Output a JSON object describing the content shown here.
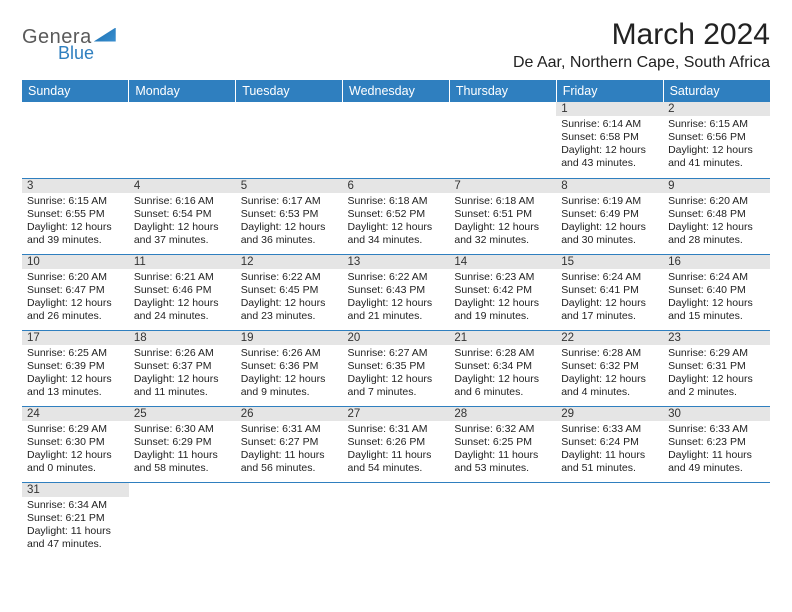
{
  "logo": {
    "part1": "Genera",
    "part2": "Blue",
    "part2_color": "#2f7fbf"
  },
  "title": "March 2024",
  "location": "De Aar, Northern Cape, South Africa",
  "header_bg": "#2f7fbf",
  "daynum_bg": "#e5e5e5",
  "border_color": "#2f7fbf",
  "days": [
    "Sunday",
    "Monday",
    "Tuesday",
    "Wednesday",
    "Thursday",
    "Friday",
    "Saturday"
  ],
  "weeks": [
    [
      null,
      null,
      null,
      null,
      null,
      {
        "n": "1",
        "sr": "Sunrise: 6:14 AM",
        "ss": "Sunset: 6:58 PM",
        "dl": "Daylight: 12 hours and 43 minutes."
      },
      {
        "n": "2",
        "sr": "Sunrise: 6:15 AM",
        "ss": "Sunset: 6:56 PM",
        "dl": "Daylight: 12 hours and 41 minutes."
      }
    ],
    [
      {
        "n": "3",
        "sr": "Sunrise: 6:15 AM",
        "ss": "Sunset: 6:55 PM",
        "dl": "Daylight: 12 hours and 39 minutes."
      },
      {
        "n": "4",
        "sr": "Sunrise: 6:16 AM",
        "ss": "Sunset: 6:54 PM",
        "dl": "Daylight: 12 hours and 37 minutes."
      },
      {
        "n": "5",
        "sr": "Sunrise: 6:17 AM",
        "ss": "Sunset: 6:53 PM",
        "dl": "Daylight: 12 hours and 36 minutes."
      },
      {
        "n": "6",
        "sr": "Sunrise: 6:18 AM",
        "ss": "Sunset: 6:52 PM",
        "dl": "Daylight: 12 hours and 34 minutes."
      },
      {
        "n": "7",
        "sr": "Sunrise: 6:18 AM",
        "ss": "Sunset: 6:51 PM",
        "dl": "Daylight: 12 hours and 32 minutes."
      },
      {
        "n": "8",
        "sr": "Sunrise: 6:19 AM",
        "ss": "Sunset: 6:49 PM",
        "dl": "Daylight: 12 hours and 30 minutes."
      },
      {
        "n": "9",
        "sr": "Sunrise: 6:20 AM",
        "ss": "Sunset: 6:48 PM",
        "dl": "Daylight: 12 hours and 28 minutes."
      }
    ],
    [
      {
        "n": "10",
        "sr": "Sunrise: 6:20 AM",
        "ss": "Sunset: 6:47 PM",
        "dl": "Daylight: 12 hours and 26 minutes."
      },
      {
        "n": "11",
        "sr": "Sunrise: 6:21 AM",
        "ss": "Sunset: 6:46 PM",
        "dl": "Daylight: 12 hours and 24 minutes."
      },
      {
        "n": "12",
        "sr": "Sunrise: 6:22 AM",
        "ss": "Sunset: 6:45 PM",
        "dl": "Daylight: 12 hours and 23 minutes."
      },
      {
        "n": "13",
        "sr": "Sunrise: 6:22 AM",
        "ss": "Sunset: 6:43 PM",
        "dl": "Daylight: 12 hours and 21 minutes."
      },
      {
        "n": "14",
        "sr": "Sunrise: 6:23 AM",
        "ss": "Sunset: 6:42 PM",
        "dl": "Daylight: 12 hours and 19 minutes."
      },
      {
        "n": "15",
        "sr": "Sunrise: 6:24 AM",
        "ss": "Sunset: 6:41 PM",
        "dl": "Daylight: 12 hours and 17 minutes."
      },
      {
        "n": "16",
        "sr": "Sunrise: 6:24 AM",
        "ss": "Sunset: 6:40 PM",
        "dl": "Daylight: 12 hours and 15 minutes."
      }
    ],
    [
      {
        "n": "17",
        "sr": "Sunrise: 6:25 AM",
        "ss": "Sunset: 6:39 PM",
        "dl": "Daylight: 12 hours and 13 minutes."
      },
      {
        "n": "18",
        "sr": "Sunrise: 6:26 AM",
        "ss": "Sunset: 6:37 PM",
        "dl": "Daylight: 12 hours and 11 minutes."
      },
      {
        "n": "19",
        "sr": "Sunrise: 6:26 AM",
        "ss": "Sunset: 6:36 PM",
        "dl": "Daylight: 12 hours and 9 minutes."
      },
      {
        "n": "20",
        "sr": "Sunrise: 6:27 AM",
        "ss": "Sunset: 6:35 PM",
        "dl": "Daylight: 12 hours and 7 minutes."
      },
      {
        "n": "21",
        "sr": "Sunrise: 6:28 AM",
        "ss": "Sunset: 6:34 PM",
        "dl": "Daylight: 12 hours and 6 minutes."
      },
      {
        "n": "22",
        "sr": "Sunrise: 6:28 AM",
        "ss": "Sunset: 6:32 PM",
        "dl": "Daylight: 12 hours and 4 minutes."
      },
      {
        "n": "23",
        "sr": "Sunrise: 6:29 AM",
        "ss": "Sunset: 6:31 PM",
        "dl": "Daylight: 12 hours and 2 minutes."
      }
    ],
    [
      {
        "n": "24",
        "sr": "Sunrise: 6:29 AM",
        "ss": "Sunset: 6:30 PM",
        "dl": "Daylight: 12 hours and 0 minutes."
      },
      {
        "n": "25",
        "sr": "Sunrise: 6:30 AM",
        "ss": "Sunset: 6:29 PM",
        "dl": "Daylight: 11 hours and 58 minutes."
      },
      {
        "n": "26",
        "sr": "Sunrise: 6:31 AM",
        "ss": "Sunset: 6:27 PM",
        "dl": "Daylight: 11 hours and 56 minutes."
      },
      {
        "n": "27",
        "sr": "Sunrise: 6:31 AM",
        "ss": "Sunset: 6:26 PM",
        "dl": "Daylight: 11 hours and 54 minutes."
      },
      {
        "n": "28",
        "sr": "Sunrise: 6:32 AM",
        "ss": "Sunset: 6:25 PM",
        "dl": "Daylight: 11 hours and 53 minutes."
      },
      {
        "n": "29",
        "sr": "Sunrise: 6:33 AM",
        "ss": "Sunset: 6:24 PM",
        "dl": "Daylight: 11 hours and 51 minutes."
      },
      {
        "n": "30",
        "sr": "Sunrise: 6:33 AM",
        "ss": "Sunset: 6:23 PM",
        "dl": "Daylight: 11 hours and 49 minutes."
      }
    ],
    [
      {
        "n": "31",
        "sr": "Sunrise: 6:34 AM",
        "ss": "Sunset: 6:21 PM",
        "dl": "Daylight: 11 hours and 47 minutes."
      },
      null,
      null,
      null,
      null,
      null,
      null
    ]
  ]
}
